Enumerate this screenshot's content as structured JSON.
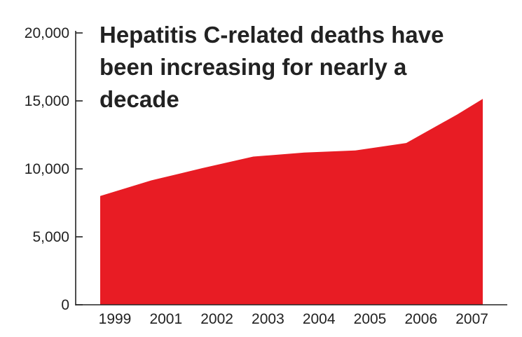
{
  "chart_data": {
    "type": "area",
    "title_lines": [
      "Hepatitis C-related deaths have",
      "been increasing for nearly a",
      "decade"
    ],
    "xlabel": "",
    "ylabel": "",
    "x_tick_labels": [
      "1999",
      "2001",
      "2002",
      "2003",
      "2004",
      "2005",
      "2006",
      "2007"
    ],
    "y_tick_labels": [
      "0",
      "5,000",
      "10,000",
      "15,000",
      "20,000"
    ],
    "y_ticks": [
      0,
      5000,
      10000,
      15000,
      20000
    ],
    "ylim": [
      0,
      20000
    ],
    "x_index_range": [
      0,
      7.5
    ],
    "x": [
      0,
      1,
      2,
      3,
      4,
      5,
      6,
      7,
      7.5
    ],
    "values": [
      8000,
      9150,
      10050,
      10900,
      11200,
      11350,
      11900,
      14000,
      15150
    ],
    "fill_color": "#e81c24",
    "grid": false,
    "legend": "none"
  },
  "colors": {
    "area": "#e81c24",
    "axis": "#222222",
    "text": "#222222",
    "background": "#ffffff"
  }
}
